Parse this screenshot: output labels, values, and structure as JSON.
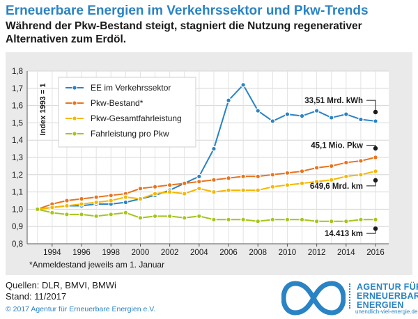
{
  "header": {
    "title": "Erneuerbare Energien im Verkehrssektor und Pkw-Trends",
    "subtitle": "Während der Pkw-Bestand steigt, stagniert die Nutzung regenerativer Alternativen zum Erdöl."
  },
  "footnote": "*Anmeldestand jeweils am 1. Januar",
  "sources": {
    "line1": "Quellen: DLR, BMVI, BMWi",
    "line2": "Stand: 11/2017"
  },
  "copyright": "© 2017 Agentur für Erneuerbare Energien e.V.",
  "logo": {
    "line1": "AGENTUR FÜR",
    "line2": "ERNEUERBARE",
    "line3": "ENERGIEN",
    "url": "unendlich-viel-energie.de",
    "color": "#2a83c4"
  },
  "chart_data": {
    "type": "line",
    "title": "Erneuerbare Energien im Verkehrssektor und Pkw-Trends",
    "ylabel": "Index 1993 = 1",
    "xlabel": "",
    "ylim": [
      0.8,
      1.8
    ],
    "yticks": [
      "0,8",
      "0,9",
      "1,0",
      "1,1",
      "1,2",
      "1,3",
      "1,4",
      "1,5",
      "1,6",
      "1,7",
      "1,8"
    ],
    "xticks": [
      "1994",
      "1996",
      "1998",
      "2000",
      "2002",
      "2004",
      "2006",
      "2008",
      "2010",
      "2012",
      "2014",
      "2016"
    ],
    "x": [
      1993,
      1994,
      1995,
      1996,
      1997,
      1998,
      1999,
      2000,
      2001,
      2002,
      2003,
      2004,
      2005,
      2006,
      2007,
      2008,
      2009,
      2010,
      2011,
      2012,
      2013,
      2014,
      2015,
      2016
    ],
    "grid": true,
    "legend_position": "top-left",
    "series": [
      {
        "name": "EE im Verkehrssektor",
        "color": "#2a83c4",
        "values": [
          1.0,
          1.01,
          1.02,
          1.02,
          1.03,
          1.03,
          1.04,
          1.06,
          1.08,
          1.11,
          1.15,
          1.19,
          1.35,
          1.63,
          1.72,
          1.57,
          1.51,
          1.55,
          1.54,
          1.57,
          1.53,
          1.55,
          1.52,
          1.51
        ]
      },
      {
        "name": "Pkw-Bestand*",
        "color": "#e8741e",
        "values": [
          1.0,
          1.03,
          1.05,
          1.06,
          1.07,
          1.08,
          1.09,
          1.12,
          1.13,
          1.14,
          1.15,
          1.16,
          1.17,
          1.18,
          1.19,
          1.19,
          1.2,
          1.21,
          1.22,
          1.24,
          1.25,
          1.27,
          1.28,
          1.3
        ]
      },
      {
        "name": "Pkw-Gesamtfahrleistung",
        "color": "#f5b800",
        "values": [
          1.0,
          1.01,
          1.02,
          1.03,
          1.04,
          1.05,
          1.07,
          1.06,
          1.09,
          1.1,
          1.09,
          1.12,
          1.1,
          1.11,
          1.11,
          1.11,
          1.13,
          1.14,
          1.15,
          1.16,
          1.17,
          1.19,
          1.2,
          1.22
        ]
      },
      {
        "name": "Fahrleistung pro Pkw",
        "color": "#a5c51a",
        "values": [
          1.0,
          0.98,
          0.97,
          0.97,
          0.96,
          0.97,
          0.98,
          0.95,
          0.96,
          0.96,
          0.95,
          0.96,
          0.94,
          0.94,
          0.94,
          0.93,
          0.94,
          0.94,
          0.94,
          0.93,
          0.93,
          0.93,
          0.94,
          0.94
        ]
      }
    ],
    "annotations": [
      {
        "text": "33,51 Mrd. kWh",
        "series": "EE im Verkehrssektor"
      },
      {
        "text": "45,1 Mio. Pkw",
        "series": "Pkw-Bestand*"
      },
      {
        "text": "649,6 Mrd. km",
        "series": "Pkw-Gesamtfahrleistung"
      },
      {
        "text": "14.413 km",
        "series": "Fahrleistung pro Pkw"
      }
    ]
  }
}
